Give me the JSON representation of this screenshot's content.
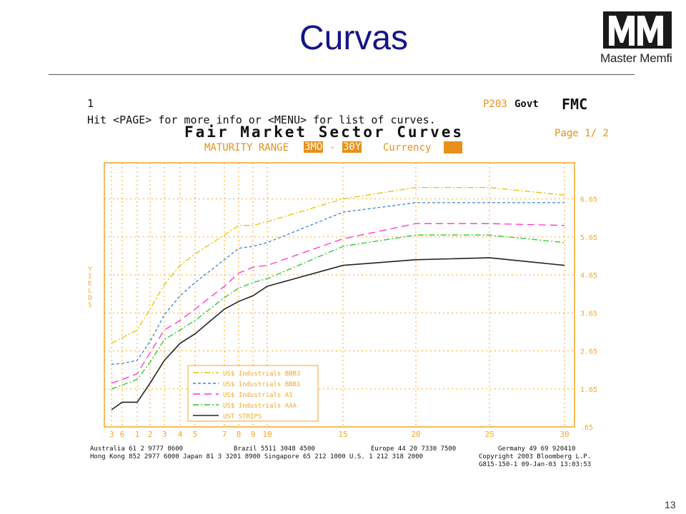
{
  "slide": {
    "title": "Curvas",
    "page_number": "13"
  },
  "logo": {
    "mark": "MM",
    "subtext": "master memfi",
    "word": "Master Memfi"
  },
  "terminal": {
    "line1": "1",
    "line2": "Hit <PAGE> for more info or <MENU> for list of curves.",
    "page_code": "P203",
    "govt": "Govt",
    "fmc": "FMC",
    "heading": "Fair Market Sector Curves",
    "page": "Page 1/ 2",
    "maturity_label": "MATURITY RANGE",
    "range_from": "3MO",
    "range_dash": "-",
    "range_to": "30Y",
    "currency_label": "Currency"
  },
  "footer": {
    "line1_left": "Australia 61 2 9777 8600",
    "line1_mid": "Brazil 5511 3048 4500",
    "line1_right": "Europe 44 20 7330 7500",
    "line1_far": "Germany 49 69 920410",
    "line2_left": "Hong Kong 852 2977 6000 Japan 81 3 3201 8900 Singapore 65 212 1000 U.S. 1 212 318 2000",
    "line2_right": "Copyright 2003 Bloomberg L.P.",
    "line3": "G815-150-1 09-Jan-03 13:03:53"
  },
  "colors": {
    "frame": "#f5a623",
    "bbb3": "#e8c000",
    "bbb1": "#3a85d8",
    "a1": "#ff2fd0",
    "aaa": "#2ec42e",
    "strips": "#222222"
  },
  "chart_data": {
    "type": "line",
    "ylabel": "YIELDS",
    "xlabel": "",
    "x_ticks": [
      "3",
      "6",
      "1",
      "2",
      "3",
      "4",
      "5",
      "7",
      "8",
      "9",
      "10",
      "15",
      "20",
      "25",
      "30"
    ],
    "y_ticks": [
      ".65",
      "1.65",
      "2.65",
      "3.65",
      "4.65",
      "5.65",
      "6.65"
    ],
    "ylim": [
      0.65,
      7.6
    ],
    "grid": true,
    "legend_position": "bottom-left",
    "series": [
      {
        "name": "US$ Industrials BBB3",
        "key": "bbb3",
        "dash": "8,3,2,3",
        "values": [
          2.85,
          3.0,
          3.2,
          3.75,
          4.4,
          4.9,
          5.2,
          5.7,
          5.95,
          5.95,
          6.05,
          6.65,
          6.95,
          6.95,
          6.75
        ]
      },
      {
        "name": "US$ Industrials BBB1",
        "key": "bbb1",
        "dash": "4,3",
        "values": [
          2.3,
          2.32,
          2.4,
          2.9,
          3.6,
          4.1,
          4.45,
          5.05,
          5.35,
          5.4,
          5.5,
          6.3,
          6.55,
          6.55,
          6.55
        ]
      },
      {
        "name": "US$ Industrials A1",
        "key": "a1",
        "dash": "10,6",
        "values": [
          1.8,
          1.9,
          2.05,
          2.6,
          3.2,
          3.45,
          3.75,
          4.35,
          4.7,
          4.85,
          4.9,
          5.6,
          6.0,
          6.0,
          5.95
        ]
      },
      {
        "name": "US$ Industrials AAA",
        "key": "aaa",
        "dash": "8,3,2,3",
        "values": [
          1.65,
          1.75,
          1.9,
          2.35,
          2.95,
          3.2,
          3.45,
          4.05,
          4.3,
          4.45,
          4.55,
          5.4,
          5.7,
          5.7,
          5.5
        ]
      },
      {
        "name": "UST STRIPS",
        "key": "strips",
        "dash": "",
        "values": [
          1.1,
          1.3,
          1.3,
          1.8,
          2.4,
          2.85,
          3.1,
          3.75,
          3.95,
          4.1,
          4.35,
          4.9,
          5.05,
          5.1,
          4.9
        ]
      }
    ]
  }
}
